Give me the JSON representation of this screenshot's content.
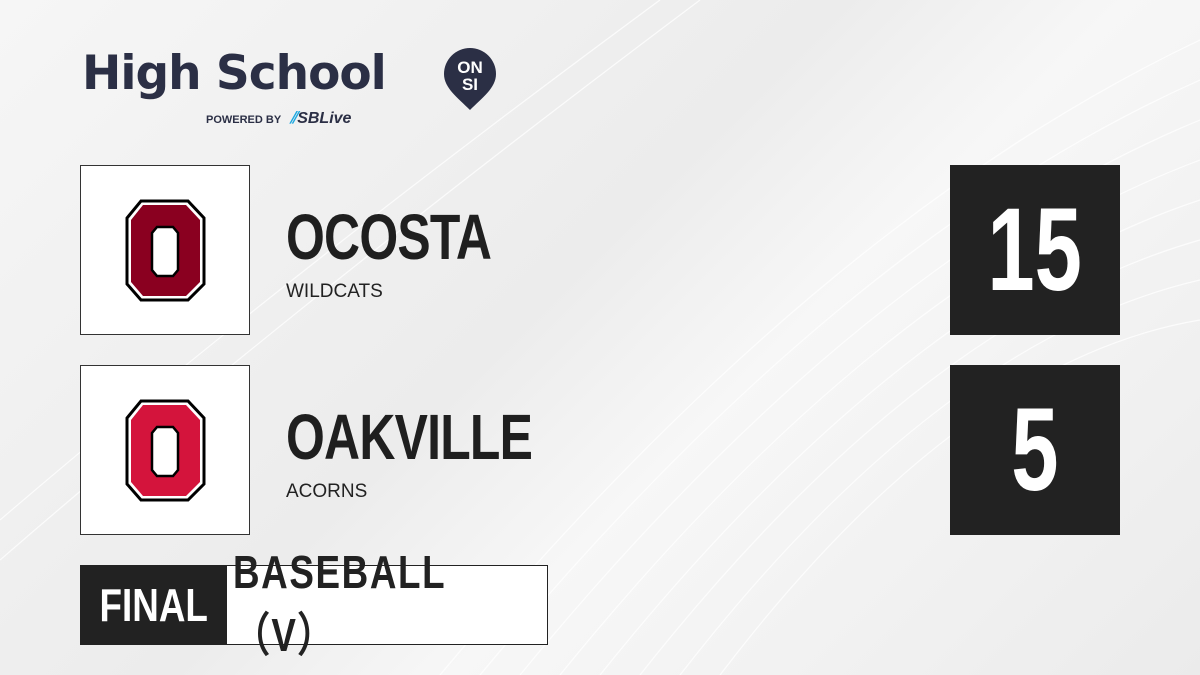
{
  "brand": {
    "title": "High School",
    "badge_top": "ON",
    "badge_bottom": "SI",
    "powered_by": "POWERED BY",
    "partner": "SBLive"
  },
  "teams": [
    {
      "name": "OCOSTA",
      "mascot": "WILDCATS",
      "score": "15",
      "logo_color": "#8a0020"
    },
    {
      "name": "OAKVILLE",
      "mascot": "ACORNS",
      "score": "5",
      "logo_color": "#d4143c"
    }
  ],
  "status": "FINAL",
  "sport": "BASEBALL（V）"
}
